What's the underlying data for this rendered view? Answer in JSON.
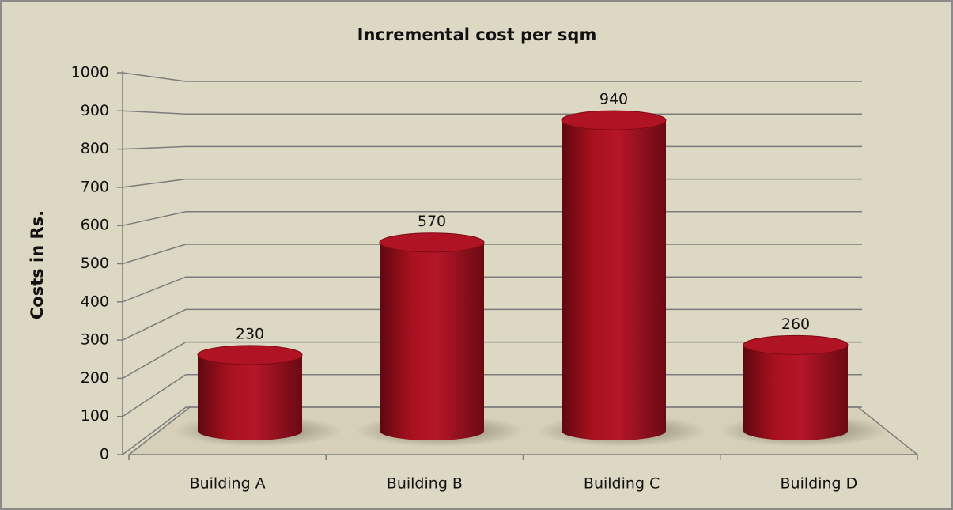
{
  "chart_data": {
    "type": "bar",
    "title": "Incremental cost per sqm",
    "y_axis_label": "Costs in Rs.",
    "categories": [
      "Building A",
      "Building B",
      "Building C",
      "Building D"
    ],
    "values": [
      230,
      570,
      940,
      260
    ],
    "color": "#a50f1f",
    "ylim": [
      0,
      1000
    ],
    "yticks": [
      0,
      100,
      200,
      300,
      400,
      500,
      600,
      700,
      800,
      900,
      1000
    ],
    "grid": true
  }
}
